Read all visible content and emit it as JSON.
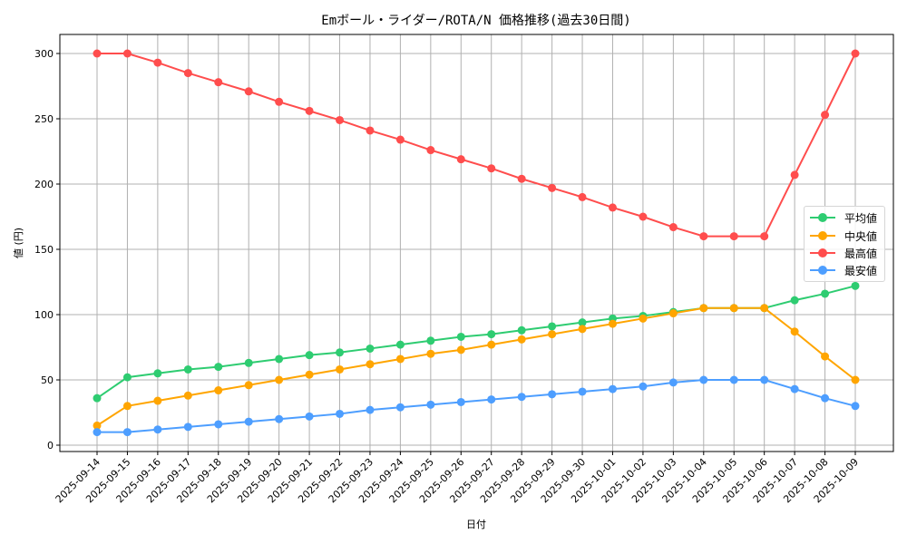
{
  "chart_data": {
    "type": "line",
    "title": "Emボール・ライダー/ROTA/N 価格推移(過去30日間)",
    "xlabel": "日付",
    "ylabel": "値 (円)",
    "ylim": [
      -8,
      314
    ],
    "yticks": [
      0,
      50,
      100,
      150,
      200,
      250,
      300
    ],
    "grid": true,
    "legend_position": "center right",
    "x": [
      "2025-09-14",
      "2025-09-15",
      "2025-09-16",
      "2025-09-17",
      "2025-09-18",
      "2025-09-19",
      "2025-09-20",
      "2025-09-21",
      "2025-09-22",
      "2025-09-23",
      "2025-09-24",
      "2025-09-25",
      "2025-09-26",
      "2025-09-27",
      "2025-09-28",
      "2025-09-29",
      "2025-09-30",
      "2025-10-01",
      "2025-10-02",
      "2025-10-03",
      "2025-10-04",
      "2025-10-05",
      "2025-10-06",
      "2025-10-07",
      "2025-10-08",
      "2025-10-09"
    ],
    "series": [
      {
        "name": "平均値",
        "color": "#2ecc71",
        "values": [
          36,
          52,
          55,
          58,
          60,
          63,
          66,
          69,
          71,
          74,
          77,
          80,
          83,
          85,
          88,
          91,
          94,
          97,
          99,
          102,
          105,
          105,
          105,
          111,
          116,
          122
        ]
      },
      {
        "name": "中央値",
        "color": "#ffa500",
        "values": [
          15,
          30,
          34,
          38,
          42,
          46,
          50,
          54,
          58,
          62,
          66,
          70,
          73,
          77,
          81,
          85,
          89,
          93,
          97,
          101,
          105,
          105,
          105,
          87,
          68,
          50
        ]
      },
      {
        "name": "最高値",
        "color": "#ff4d4d",
        "values": [
          300,
          300,
          293,
          285,
          278,
          271,
          263,
          256,
          249,
          241,
          234,
          226,
          219,
          212,
          204,
          197,
          190,
          182,
          175,
          167,
          160,
          160,
          160,
          207,
          253,
          300
        ]
      },
      {
        "name": "最安値",
        "color": "#4d9eff",
        "values": [
          10,
          10,
          12,
          14,
          16,
          18,
          20,
          22,
          24,
          27,
          29,
          31,
          33,
          35,
          37,
          39,
          41,
          43,
          45,
          48,
          50,
          50,
          50,
          43,
          36,
          30
        ]
      }
    ]
  },
  "legend": {
    "items": [
      {
        "label": "平均値",
        "color": "#2ecc71"
      },
      {
        "label": "中央値",
        "color": "#ffa500"
      },
      {
        "label": "最高値",
        "color": "#ff4d4d"
      },
      {
        "label": "最安値",
        "color": "#4d9eff"
      }
    ]
  }
}
